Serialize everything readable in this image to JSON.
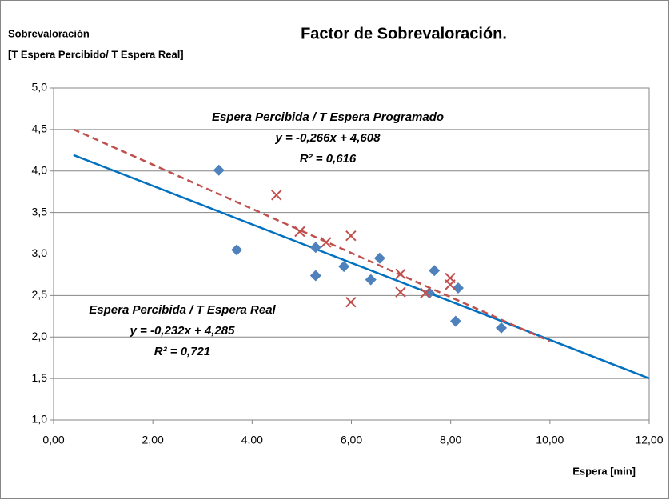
{
  "chart_data": {
    "type": "scatter",
    "title": "Factor de Sobrevaloración.",
    "y_label": [
      "Sobrevaloración",
      "[T Espera Percibido/ T Espera Real]"
    ],
    "x_label": "Espera  [min]",
    "xlim": [
      0,
      12
    ],
    "ylim": [
      1,
      5
    ],
    "xticks": [
      {
        "value": 0,
        "label": "0,00"
      },
      {
        "value": 2,
        "label": "2,00"
      },
      {
        "value": 4,
        "label": "4,00"
      },
      {
        "value": 6,
        "label": "6,00"
      },
      {
        "value": 8,
        "label": "8,00"
      },
      {
        "value": 10,
        "label": "10,00"
      },
      {
        "value": 12,
        "label": "12,00"
      }
    ],
    "yticks": [
      {
        "value": 1,
        "label": "1,0"
      },
      {
        "value": 1.5,
        "label": "1,5"
      },
      {
        "value": 2,
        "label": "2,0"
      },
      {
        "value": 2.5,
        "label": "2,5"
      },
      {
        "value": 3,
        "label": "3,0"
      },
      {
        "value": 3.5,
        "label": "3,5"
      },
      {
        "value": 4,
        "label": "4,0"
      },
      {
        "value": 4.5,
        "label": "4,5"
      },
      {
        "value": 5,
        "label": "5,0"
      }
    ],
    "grid": true,
    "series": [
      {
        "color": "#4f81bd",
        "marker": "diamond",
        "x": [
          3.33,
          3.69,
          5.28,
          5.28,
          5.85,
          6.39,
          6.57,
          7.57,
          7.67,
          8.15,
          8.1,
          9.02
        ],
        "values": [
          4.01,
          3.05,
          3.08,
          2.74,
          2.85,
          2.69,
          2.95,
          2.53,
          2.8,
          2.59,
          2.19,
          2.11
        ],
        "trendline": {
          "color": "#0070c0",
          "dashed": false,
          "slope": -0.232,
          "intercept": 4.285,
          "x": [
            0.4,
            12
          ]
        },
        "annotation": [
          "Espera Percibida / T Espera Real",
          "y = -0,232x + 4,285",
          "R² = 0,721"
        ]
      },
      {
        "color": "#c0504d",
        "marker": "x",
        "x": [
          4.49,
          4.96,
          5.49,
          5.99,
          5.99,
          6.99,
          6.99,
          7.49,
          7.99,
          7.99
        ],
        "values": [
          3.71,
          3.27,
          3.14,
          3.22,
          2.42,
          2.76,
          2.54,
          2.53,
          2.71,
          2.63
        ],
        "trendline": {
          "color": "#c0504d",
          "dashed": true,
          "slope": -0.266,
          "intercept": 4.608,
          "x": [
            0.4,
            10
          ]
        },
        "annotation": [
          "Espera Percibida  /  T Espera Programado",
          "y = -0,266x + 4,608",
          "R² = 0,616"
        ]
      }
    ]
  }
}
